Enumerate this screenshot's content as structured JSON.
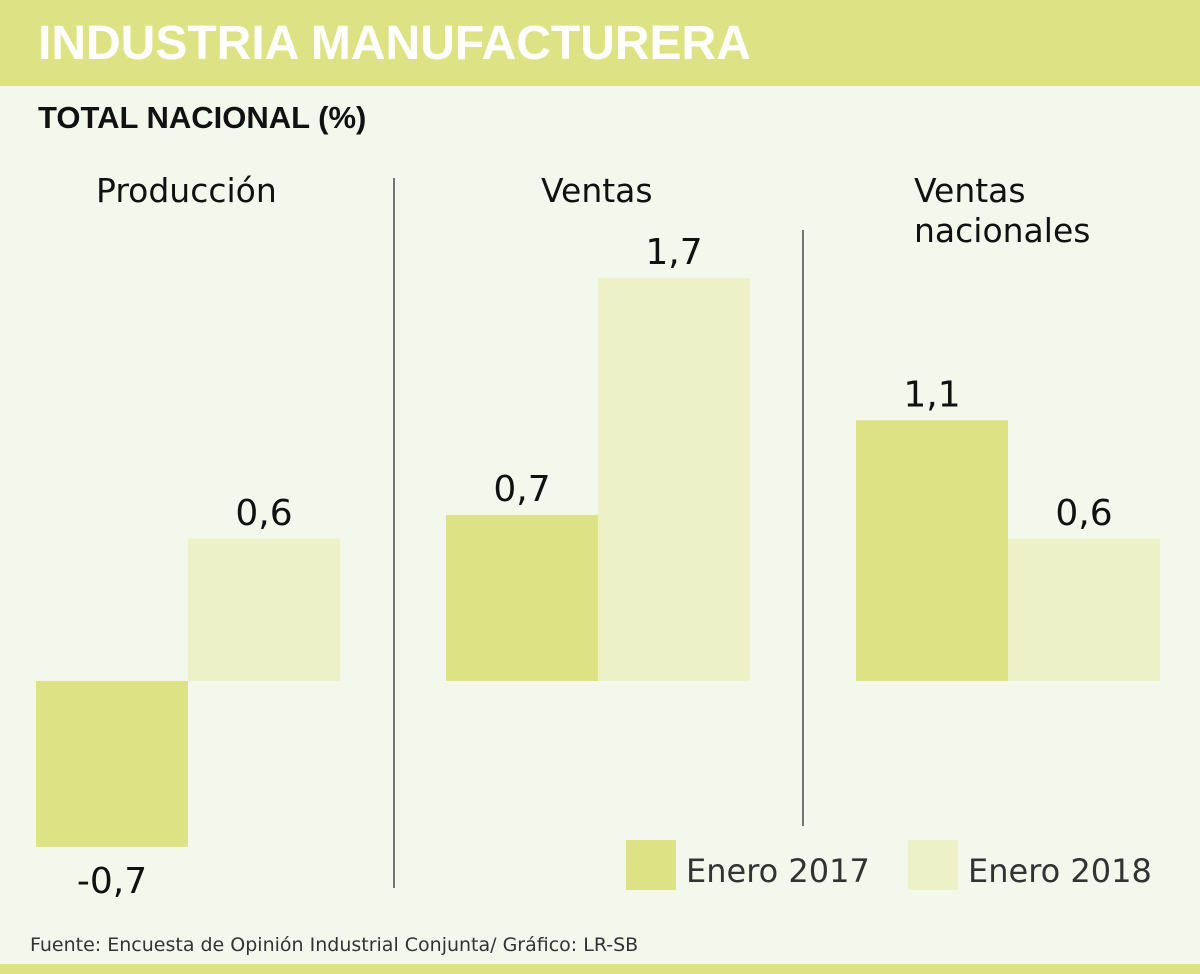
{
  "header": {
    "title": "INDUSTRIA MANUFACTURERA",
    "subtitle": "TOTAL NACIONAL (%)"
  },
  "chart_data": {
    "type": "bar",
    "categories": [
      "Producción",
      "Ventas",
      "Ventas nacionales"
    ],
    "category_lines": [
      [
        "Producción"
      ],
      [
        "Ventas"
      ],
      [
        "Ventas",
        "nacionales"
      ]
    ],
    "series": [
      {
        "name": "Enero 2017",
        "values": [
          -0.7,
          0.7,
          1.1
        ],
        "labels": [
          "-0,7",
          "0,7",
          "1,1"
        ],
        "color": "#dde384"
      },
      {
        "name": "Enero 2018",
        "values": [
          0.6,
          1.7,
          0.6
        ],
        "labels": [
          "0,6",
          "1,7",
          "0,6"
        ],
        "color": "#edf1c8"
      }
    ],
    "legend_position": "bottom-right",
    "grid": false
  },
  "footer": {
    "source": "Fuente: Encuesta de Opinión Industrial Conjunta/ Gráfico: LR-SB"
  },
  "colors": {
    "accent": "#dde384",
    "background": "#f3f7ec",
    "text": "#111111"
  }
}
